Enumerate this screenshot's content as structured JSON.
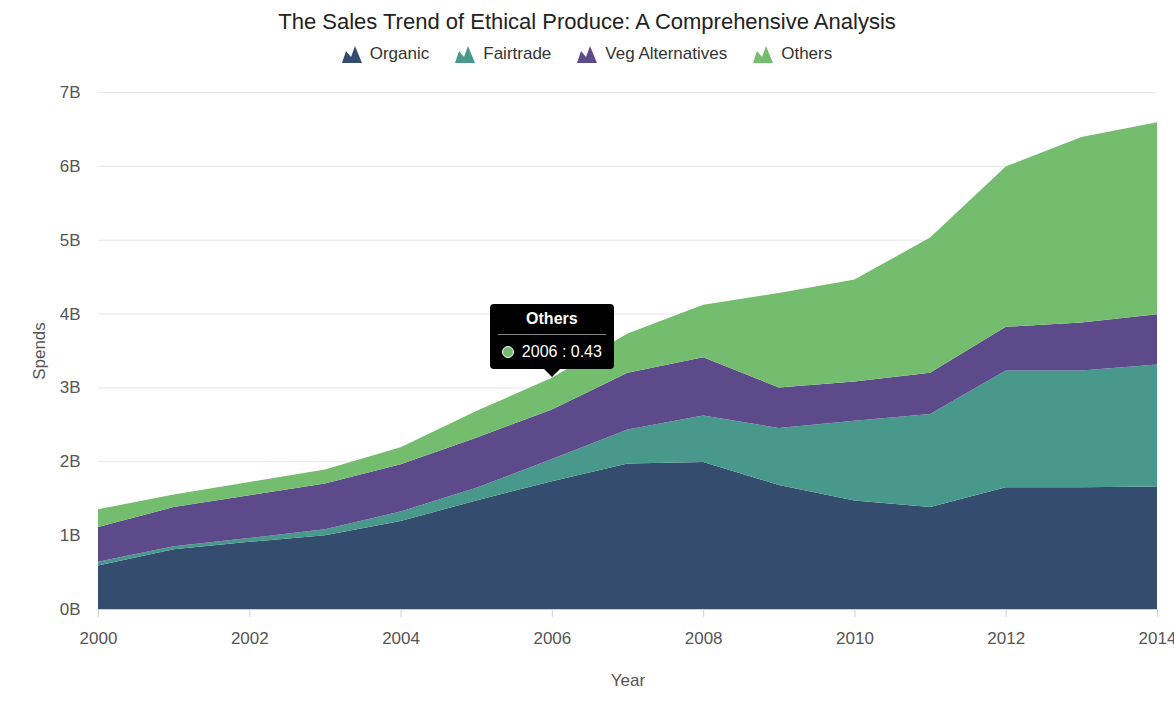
{
  "chart_data": {
    "type": "area",
    "title": "The Sales Trend of Ethical Produce: A Comprehensive Analysis",
    "x_label": "Year",
    "y_label": "Spends",
    "stacked": true,
    "grid": true,
    "legend": "top",
    "x": [
      2000,
      2001,
      2002,
      2003,
      2004,
      2005,
      2006,
      2007,
      2008,
      2009,
      2010,
      2011,
      2012,
      2013,
      2014
    ],
    "xlim": [
      2000,
      2014
    ],
    "xticks": [
      2000,
      2002,
      2004,
      2006,
      2008,
      2010,
      2012,
      2014
    ],
    "ylim": [
      0,
      7
    ],
    "yticks": [
      {
        "value": 0,
        "label": "0B"
      },
      {
        "value": 1,
        "label": "1B"
      },
      {
        "value": 2,
        "label": "2B"
      },
      {
        "value": 3,
        "label": "3B"
      },
      {
        "value": 4,
        "label": "4B"
      },
      {
        "value": 5,
        "label": "5B"
      },
      {
        "value": 6,
        "label": "6B"
      },
      {
        "value": 7,
        "label": "7B"
      }
    ],
    "series": [
      {
        "name": "Organic",
        "color": "#344d6f",
        "values": [
          0.59,
          0.81,
          0.91,
          1.0,
          1.19,
          1.47,
          1.73,
          1.97,
          1.99,
          1.68,
          1.47,
          1.38,
          1.65,
          1.65,
          1.66
        ]
      },
      {
        "name": "Fairtrade",
        "color": "#48998b",
        "values": [
          0.05,
          0.04,
          0.05,
          0.08,
          0.13,
          0.17,
          0.3,
          0.46,
          0.63,
          0.77,
          1.08,
          1.26,
          1.58,
          1.58,
          1.65
        ]
      },
      {
        "name": "Veg Alternatives",
        "color": "#5d4a8b",
        "values": [
          0.47,
          0.53,
          0.58,
          0.62,
          0.64,
          0.68,
          0.67,
          0.77,
          0.79,
          0.55,
          0.53,
          0.56,
          0.59,
          0.65,
          0.68
        ]
      },
      {
        "name": "Others",
        "color": "#75bd6e",
        "values": [
          0.24,
          0.17,
          0.18,
          0.19,
          0.23,
          0.36,
          0.43,
          0.53,
          0.71,
          1.28,
          1.38,
          1.83,
          2.17,
          2.51,
          2.6
        ]
      }
    ],
    "annotations": [
      {
        "series": "Others",
        "x": 2006,
        "title": "Others",
        "text": "2006 : 0.43"
      }
    ]
  }
}
